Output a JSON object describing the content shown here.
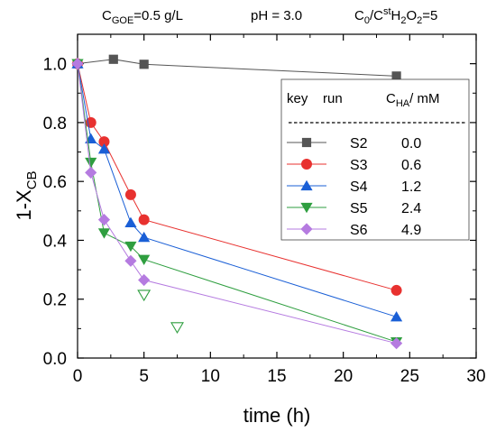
{
  "conditions": {
    "goe": {
      "base": "C",
      "sub": "GOE",
      "rest": "=0.5 g/L"
    },
    "ph": {
      "text": "pH = 3.0"
    },
    "ratio": {
      "c": "C",
      "sub0": "0",
      "slash": "/C",
      "sup": "st",
      "h": "H",
      "sub2a": "2",
      "o": "O",
      "sub2b": "2",
      "eq": "=5"
    }
  },
  "chart_data": {
    "type": "scatter",
    "xlabel": "time (h)",
    "ylabel": {
      "base": "1-X",
      "sub": "CB"
    },
    "xlim": [
      0,
      30
    ],
    "ylim": [
      0,
      1.1
    ],
    "x_ticks": [
      0,
      5,
      10,
      15,
      20,
      25,
      30
    ],
    "y_ticks": [
      "0.0",
      "0.2",
      "0.4",
      "0.6",
      "0.8",
      "1.0"
    ],
    "grid": false,
    "legend": {
      "placement": "top-right",
      "headers": {
        "key": "key",
        "run": "run",
        "c_base": "C",
        "c_sub": "HA",
        "c_unit": "/ mM"
      }
    },
    "series": [
      {
        "name": "S2",
        "c_ha": "0.0",
        "marker": "square",
        "color": "#555555",
        "x": [
          0,
          2.7,
          5,
          24
        ],
        "y": [
          1.0,
          1.015,
          0.998,
          0.958
        ]
      },
      {
        "name": "S3",
        "c_ha": "0.6",
        "marker": "circle",
        "color": "#e8312f",
        "x": [
          0,
          1,
          2,
          4,
          5,
          24
        ],
        "y": [
          1.0,
          0.8,
          0.735,
          0.555,
          0.47,
          0.23
        ]
      },
      {
        "name": "S4",
        "c_ha": "1.2",
        "marker": "triangle-up",
        "color": "#1a5fd6",
        "x": [
          0,
          1,
          2,
          4,
          5,
          24
        ],
        "y": [
          1.0,
          0.745,
          0.71,
          0.46,
          0.41,
          0.14
        ]
      },
      {
        "name": "S5",
        "c_ha": "2.4",
        "marker": "triangle-down",
        "color": "#2e9e3f",
        "x": [
          0,
          1,
          2,
          4,
          5,
          24
        ],
        "y": [
          1.0,
          0.665,
          0.425,
          0.38,
          0.335,
          0.055
        ]
      },
      {
        "name": "S6",
        "c_ha": "4.9",
        "marker": "diamond",
        "color": "#b57be0",
        "x": [
          0,
          1,
          2,
          4,
          5,
          24
        ],
        "y": [
          1.0,
          0.63,
          0.47,
          0.33,
          0.265,
          0.05
        ]
      }
    ],
    "extra_points": [
      {
        "marker": "triangle-down-open",
        "color": "#2e9e3f",
        "x": 5,
        "y": 0.215
      },
      {
        "marker": "triangle-down-open",
        "color": "#2e9e3f",
        "x": 7.5,
        "y": 0.105
      }
    ]
  }
}
